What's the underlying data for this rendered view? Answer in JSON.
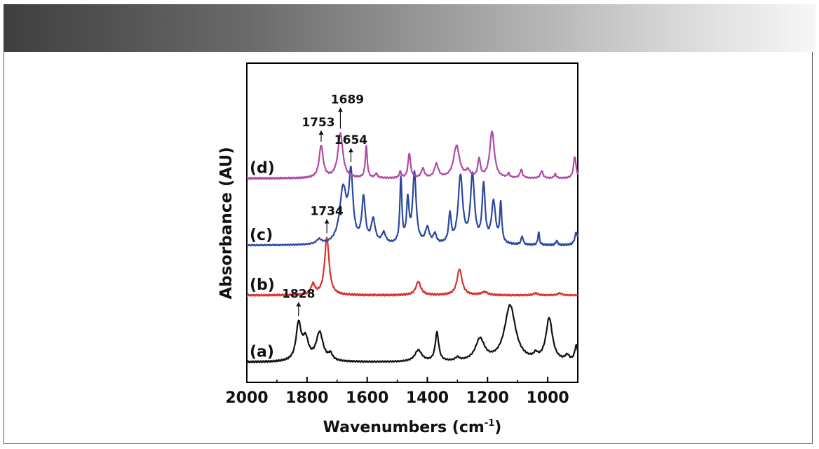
{
  "colors": {
    "a": "#111111",
    "b": "#d9342b",
    "c": "#2c47a0",
    "d": "#b04aa6"
  },
  "chart_data": {
    "type": "line",
    "title": "",
    "xlabel": "Wavenumbers (cm-1)",
    "xlabel_main": "Wavenumbers (cm",
    "xlabel_sup": "-1",
    "xlabel_close": ")",
    "ylabel": "Absorbance (AU)",
    "xlim": [
      2000,
      900
    ],
    "x_reversed": true,
    "xticks": [
      2000,
      1800,
      1600,
      1400,
      1200,
      1000
    ],
    "xtick_labels": [
      "2000",
      "1800",
      "1600",
      "1400",
      "1200",
      "1000"
    ],
    "yticks": [],
    "grid": false,
    "series": [
      {
        "name": "(a)",
        "color": "#111111",
        "offset": 0.0,
        "baseline": 0.05,
        "peaks": [
          [
            1828,
            0.7,
            10
          ],
          [
            1805,
            0.4,
            12
          ],
          [
            1758,
            0.55,
            14
          ],
          [
            1722,
            0.12,
            8
          ],
          [
            1430,
            0.22,
            14
          ],
          [
            1368,
            0.55,
            7
          ],
          [
            1300,
            0.06,
            8
          ],
          [
            1225,
            0.42,
            18
          ],
          [
            1125,
            1.08,
            22
          ],
          [
            1040,
            0.09,
            8
          ],
          [
            995,
            0.82,
            13
          ],
          [
            935,
            0.1,
            8
          ],
          [
            905,
            0.3,
            6
          ]
        ],
        "annotations": [
          {
            "x": 1828,
            "label": "1828"
          }
        ]
      },
      {
        "name": "(b)",
        "color": "#d9342b",
        "offset": 1.3,
        "baseline": 0.04,
        "peaks": [
          [
            1780,
            0.2,
            8
          ],
          [
            1734,
            1.1,
            9
          ],
          [
            1430,
            0.26,
            10
          ],
          [
            1293,
            0.5,
            10
          ],
          [
            1210,
            0.06,
            12
          ],
          [
            1040,
            0.04,
            8
          ],
          [
            960,
            0.04,
            8
          ]
        ],
        "annotations": [
          {
            "x": 1734,
            "label": "1734"
          }
        ]
      },
      {
        "name": "(c)",
        "color": "#2c47a0",
        "offset": 2.25,
        "baseline": 0.05,
        "peaks": [
          [
            1760,
            0.09,
            10
          ],
          [
            1680,
            1.05,
            14
          ],
          [
            1654,
            1.25,
            8
          ],
          [
            1612,
            0.85,
            7
          ],
          [
            1580,
            0.45,
            8
          ],
          [
            1545,
            0.2,
            8
          ],
          [
            1488,
            1.25,
            4
          ],
          [
            1465,
            0.8,
            5
          ],
          [
            1443,
            1.35,
            7
          ],
          [
            1400,
            0.3,
            8
          ],
          [
            1375,
            0.18,
            6
          ],
          [
            1325,
            0.55,
            5
          ],
          [
            1290,
            1.3,
            9
          ],
          [
            1250,
            1.3,
            8
          ],
          [
            1213,
            1.1,
            6
          ],
          [
            1180,
            0.8,
            8
          ],
          [
            1156,
            0.75,
            4
          ],
          [
            1085,
            0.16,
            4
          ],
          [
            1030,
            0.25,
            3
          ],
          [
            970,
            0.08,
            4
          ],
          [
            905,
            0.25,
            6
          ]
        ],
        "annotations": [
          {
            "x": 1654,
            "label": "1654"
          }
        ]
      },
      {
        "name": "(d)",
        "color": "#b04aa6",
        "offset": 3.55,
        "baseline": 0.04,
        "peaks": [
          [
            1753,
            0.62,
            8
          ],
          [
            1689,
            0.85,
            10
          ],
          [
            1603,
            0.6,
            4
          ],
          [
            1570,
            0.08,
            5
          ],
          [
            1490,
            0.12,
            4
          ],
          [
            1460,
            0.48,
            5
          ],
          [
            1415,
            0.18,
            6
          ],
          [
            1370,
            0.26,
            8
          ],
          [
            1303,
            0.62,
            12
          ],
          [
            1265,
            0.12,
            8
          ],
          [
            1228,
            0.35,
            5
          ],
          [
            1185,
            0.9,
            9
          ],
          [
            1130,
            0.08,
            4
          ],
          [
            1088,
            0.16,
            5
          ],
          [
            1020,
            0.14,
            5
          ],
          [
            975,
            0.08,
            4
          ],
          [
            910,
            0.42,
            5
          ]
        ],
        "annotations": [
          {
            "x": 1753,
            "label": "1753"
          },
          {
            "x": 1689,
            "label": "1689"
          }
        ]
      }
    ]
  }
}
